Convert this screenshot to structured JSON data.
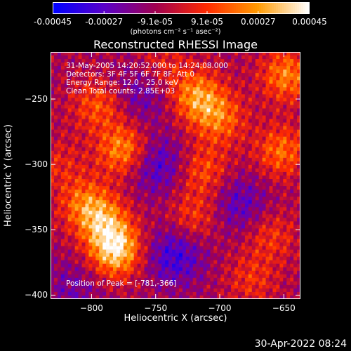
{
  "colorbar": {
    "ticks": [
      "-0.00045",
      "-0.00027",
      "-9.1e-05",
      "9.1e-05",
      "0.00027",
      "0.00045"
    ],
    "tick_values": [
      -0.00045,
      -0.00027,
      -9.1e-05,
      9.1e-05,
      0.00027,
      0.00045
    ],
    "range": [
      -0.00045,
      0.00045
    ],
    "unit_label": "(photons cm⁻² s⁻¹ asec⁻²)",
    "colors": [
      "#0000ff",
      "#5a00c8",
      "#a00050",
      "#ff2a00",
      "#ff9a00",
      "#ffffff"
    ]
  },
  "chart_data": {
    "type": "heatmap",
    "title": "Reconstructed RHESSI Image",
    "xlabel": "Heliocentric X (arcsec)",
    "ylabel": "Heliocentric Y (arcsec)",
    "xlim": [
      -832,
      -637
    ],
    "ylim": [
      -403,
      -214
    ],
    "xticks": [
      -800,
      -750,
      -700,
      -650
    ],
    "yticks": [
      -250,
      -300,
      -350,
      -400
    ],
    "peak": {
      "x": -781,
      "y": -366
    },
    "sources": [
      {
        "x": -781,
        "y": -366,
        "value": 0.00045
      },
      {
        "x": -790,
        "y": -345,
        "value": 0.0003
      },
      {
        "x": -805,
        "y": -330,
        "value": 0.00026
      },
      {
        "x": -775,
        "y": -289,
        "value": 0.00034
      },
      {
        "x": -795,
        "y": -255,
        "value": 0.00022
      },
      {
        "x": -718,
        "y": -248,
        "value": 0.00033
      },
      {
        "x": -700,
        "y": -265,
        "value": 0.00026
      },
      {
        "x": -712,
        "y": -305,
        "value": 0.00021
      },
      {
        "x": -720,
        "y": -340,
        "value": 0.00018
      },
      {
        "x": -648,
        "y": -232,
        "value": 0.0003
      },
      {
        "x": -652,
        "y": -290,
        "value": 0.00026
      },
      {
        "x": -660,
        "y": -355,
        "value": 0.00016
      },
      {
        "x": -745,
        "y": -225,
        "value": 0.00014
      },
      {
        "x": -825,
        "y": -300,
        "value": 0.00012
      },
      {
        "x": -675,
        "y": -388,
        "value": 0.00015
      }
    ],
    "negative_sources": [
      {
        "x": -750,
        "y": -300,
        "value": -0.00022
      },
      {
        "x": -735,
        "y": -370,
        "value": -0.00024
      },
      {
        "x": -685,
        "y": -330,
        "value": -0.00018
      },
      {
        "x": -760,
        "y": -245,
        "value": -0.00016
      },
      {
        "x": -815,
        "y": -395,
        "value": -0.00012
      }
    ]
  },
  "overlay": {
    "line1": "31-May-2005 14:20:52.000 to 14:24:08.000",
    "line2": "Detectors: 3F 4F 5F 6F 7F 8F, Att 0",
    "line3": "Energy Range: 12.0 - 25.0 keV",
    "line4": "Clean     Total counts: 2.85E+03",
    "peak_text": "Position of Peak = [-781,-366]"
  },
  "footer": {
    "timestamp": "30-Apr-2022 08:24"
  }
}
